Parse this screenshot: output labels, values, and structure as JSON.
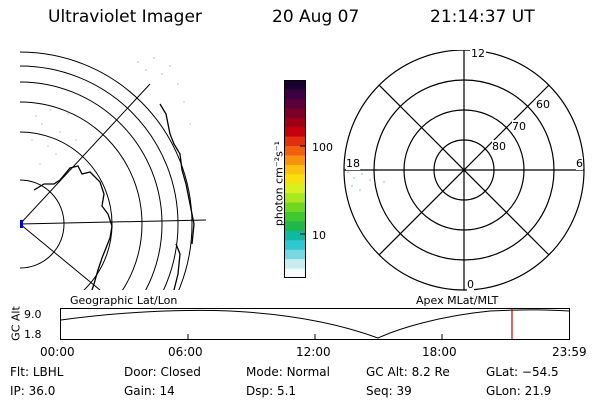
{
  "header": {
    "title": "Ultraviolet Imager",
    "date": "20 Aug 07",
    "time": "21:14:37 UT"
  },
  "geo_panel": {
    "label": "Geographic Lat/Lon"
  },
  "colorbar": {
    "unit_label": "photon cm⁻²s⁻¹",
    "ticks": [
      "100",
      "10"
    ],
    "colors": [
      "#1a0030",
      "#3b0040",
      "#5a003c",
      "#7a0028",
      "#9e0018",
      "#c40010",
      "#e03010",
      "#f06010",
      "#f89010",
      "#fcc010",
      "#f8e010",
      "#d8f020",
      "#a8e820",
      "#70d820",
      "#40c830",
      "#20b848",
      "#10b8a0",
      "#30c8d0",
      "#78d8e0",
      "#c8ecf0",
      "#f4fbfb"
    ]
  },
  "polar_panel": {
    "label": "Apex MLat/MLT",
    "mlt_labels": {
      "top": "12",
      "right": "6",
      "bottom": "0",
      "left": "18"
    },
    "lat_labels": [
      "80",
      "70",
      "60"
    ]
  },
  "altitude_plot": {
    "ylabel": "GC Alt",
    "yticks": [
      "9.0",
      "1.8"
    ],
    "xticks": [
      "00:00",
      "06:00",
      "12:00",
      "18:00",
      "23:59"
    ],
    "marker_color": "#cc0000"
  },
  "info": {
    "row1": [
      {
        "label": "Flt:",
        "value": "LBHL"
      },
      {
        "label": "Door:",
        "value": "Closed"
      },
      {
        "label": "Mode:",
        "value": "Normal"
      },
      {
        "label": "GC Alt:",
        "value": "8.2 Re"
      },
      {
        "label": "GLat:",
        "value": "−54.5"
      }
    ],
    "row2": [
      {
        "label": "IP:",
        "value": "36.0"
      },
      {
        "label": "Gain:",
        "value": "14"
      },
      {
        "label": "Dsp:",
        "value": "5.1"
      },
      {
        "label": "Seq:",
        "value": "39"
      },
      {
        "label": "GLon:",
        "value": "21.9"
      }
    ]
  }
}
